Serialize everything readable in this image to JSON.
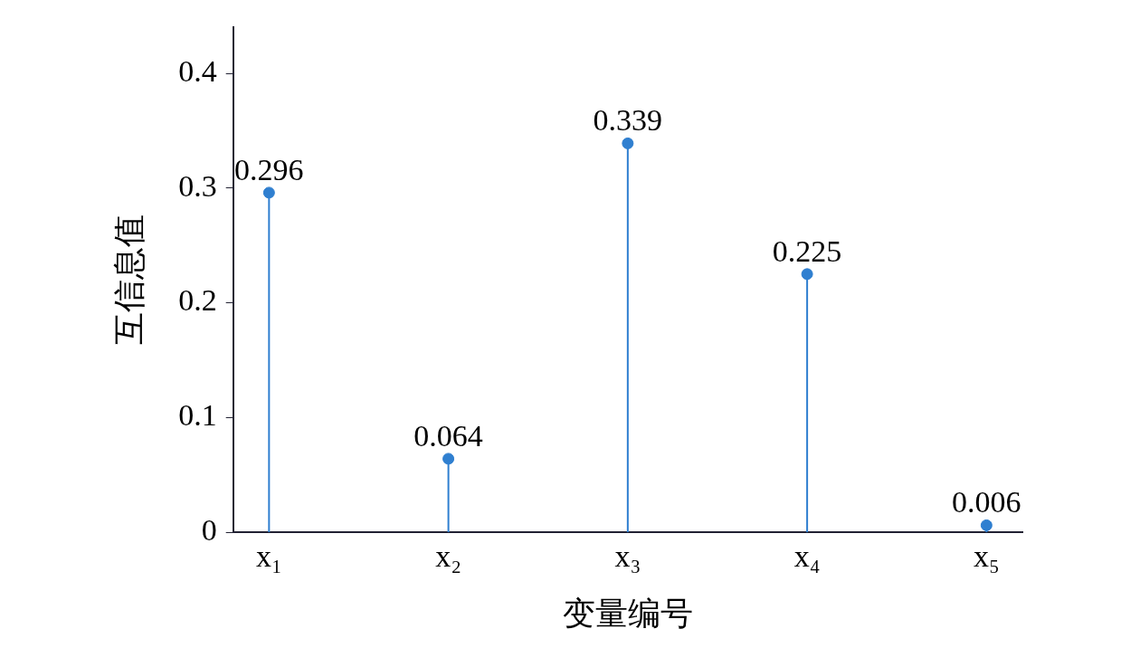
{
  "chart_data": {
    "type": "lollipop",
    "xlabel": "变量编号",
    "ylabel": "互信息值",
    "categories": [
      "x₁",
      "x₂",
      "x₃",
      "x₄",
      "x₅"
    ],
    "values": [
      0.296,
      0.064,
      0.339,
      0.225,
      0.006
    ],
    "color": "#2f7fd0",
    "ylim": [
      0,
      0.44
    ],
    "yticks": [
      0,
      0.1,
      0.2,
      0.3,
      0.4
    ],
    "grid": false,
    "legend": false,
    "marker": "circle",
    "data_labels": true
  }
}
